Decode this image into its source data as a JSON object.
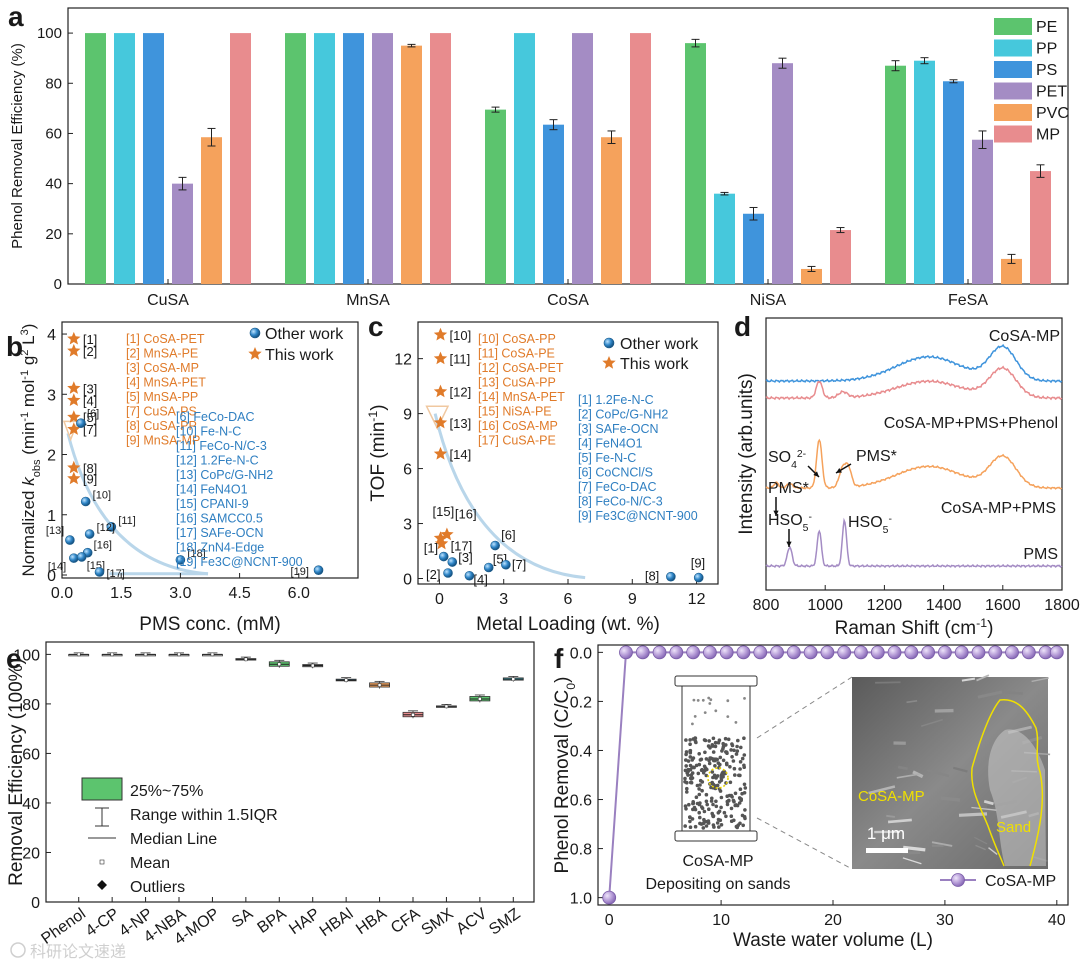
{
  "watermark": "科研论文速递",
  "chart_data": [
    {
      "panel": "a",
      "type": "bar",
      "ylabel": "Phenol Removal Efficiency (%)",
      "ylim": [
        0,
        110
      ],
      "yticks": [
        0,
        20,
        40,
        60,
        80,
        100
      ],
      "categories": [
        "CuSA",
        "MnSA",
        "CoSA",
        "NiSA",
        "FeSA"
      ],
      "legend_position": "top-right",
      "series": [
        {
          "name": "PE",
          "color": "#5cc46e",
          "values": [
            100,
            100,
            69.5,
            96,
            87
          ],
          "errors": [
            0,
            0,
            1,
            1.5,
            2
          ]
        },
        {
          "name": "PP",
          "color": "#46c8dc",
          "values": [
            100,
            100,
            100,
            36,
            89
          ],
          "errors": [
            0,
            0,
            0,
            0.5,
            1.2
          ]
        },
        {
          "name": "PS",
          "color": "#3f94dc",
          "values": [
            100,
            100,
            63.5,
            28,
            80.8
          ],
          "errors": [
            0,
            0,
            2,
            2.5,
            0.6
          ]
        },
        {
          "name": "PET",
          "color": "#a48cc4",
          "values": [
            40,
            100,
            100,
            88,
            57.5
          ],
          "errors": [
            2.5,
            0,
            0,
            2,
            3.5
          ]
        },
        {
          "name": "PVC",
          "color": "#f5a25c",
          "values": [
            58.5,
            95,
            58.5,
            6,
            10
          ],
          "errors": [
            3.5,
            0.5,
            2.5,
            1,
            1.8
          ]
        },
        {
          "name": "MP",
          "color": "#e88c8e",
          "values": [
            100,
            100,
            100,
            21.5,
            45
          ],
          "errors": [
            0,
            0,
            0,
            1,
            2.5
          ]
        }
      ]
    },
    {
      "panel": "b",
      "type": "scatter",
      "xlabel": "PMS conc. (mM)",
      "ylabel_parts": [
        "Normalized ",
        "k",
        "obs",
        " (min",
        "-1",
        " mol",
        "-1",
        " g",
        "2",
        " L",
        "3",
        ")"
      ],
      "xlim": [
        0,
        7.5
      ],
      "ylim": [
        -0.05,
        4.2
      ],
      "xticks": [
        "0.0",
        "1.5",
        "3.0",
        "4.5",
        "6.0"
      ],
      "yticks": [
        0,
        1,
        2,
        3,
        4
      ],
      "this_work": [
        {
          "label": "[1]",
          "x": 0.3,
          "y": 3.92
        },
        {
          "label": "[2]",
          "x": 0.3,
          "y": 3.72
        },
        {
          "label": "[3]",
          "x": 0.3,
          "y": 3.1
        },
        {
          "label": "[4]",
          "x": 0.3,
          "y": 2.9
        },
        {
          "label": "[5]",
          "x": 0.3,
          "y": 2.62
        },
        {
          "label": "[7]",
          "x": 0.3,
          "y": 2.42
        },
        {
          "label": "[8]",
          "x": 0.3,
          "y": 1.78
        },
        {
          "label": "[9]",
          "x": 0.3,
          "y": 1.6
        }
      ],
      "other_work": [
        {
          "label": "[6]",
          "x": 0.48,
          "y": 2.52
        },
        {
          "label": "[10]",
          "x": 0.6,
          "y": 1.22
        },
        {
          "label": "[11]",
          "x": 1.25,
          "y": 0.8
        },
        {
          "label": "[12]",
          "x": 0.7,
          "y": 0.68
        },
        {
          "label": "[13]",
          "x": 0.2,
          "y": 0.58
        },
        {
          "label": "[16]",
          "x": 0.65,
          "y": 0.37
        },
        {
          "label": "[14]",
          "x": 0.3,
          "y": 0.28
        },
        {
          "label": "[15]",
          "x": 0.5,
          "y": 0.3
        },
        {
          "label": "[17]",
          "x": 0.95,
          "y": 0.05
        },
        {
          "label": "[18]",
          "x": 3.0,
          "y": 0.25
        },
        {
          "label": "[19]",
          "x": 6.5,
          "y": 0.08
        }
      ],
      "legend": [
        "Other work",
        "This work"
      ],
      "refs_this_work": [
        "[1] CoSA-PET",
        "[2] MnSA-PE",
        "[3] CoSA-MP",
        "[4] MnSA-PET",
        "[5] MnSA-PP",
        "[7] CuSA-PS",
        "[8] CuSA-PP",
        "[9] MnSA-MP"
      ],
      "refs_other_work": [
        "[6] FeCo-DAC",
        "[10] Fe-N-C",
        "[11] FeCo-N/C-3",
        "[12] 1.2Fe-N-C",
        "[13] CoPc/G-NH2",
        "[14] FeN4O1",
        "[15] CPANI-9",
        "[16] SAMCC0.5",
        "[17] SAFe-OCN",
        "[18] ZnN4-Edge",
        "[19] Fe3C@NCNT-900"
      ]
    },
    {
      "panel": "c",
      "type": "scatter",
      "xlabel": "Metal Loading (wt. %)",
      "ylabel_parts": [
        "TOF (min",
        "-1",
        ")"
      ],
      "xlim": [
        -1,
        13
      ],
      "ylim": [
        -0.3,
        14
      ],
      "xticks": [
        0,
        3,
        6,
        9,
        12
      ],
      "yticks": [
        0,
        3,
        6,
        9,
        12
      ],
      "this_work": [
        {
          "label": "[10]",
          "x": 0.05,
          "y": 13.3
        },
        {
          "label": "[11]",
          "x": 0.05,
          "y": 12.0
        },
        {
          "label": "[12]",
          "x": 0.05,
          "y": 10.2
        },
        {
          "label": "[13]",
          "x": 0.05,
          "y": 8.5
        },
        {
          "label": "[14]",
          "x": 0.05,
          "y": 6.8
        },
        {
          "label": "[15]",
          "x": 0.05,
          "y": 2.2
        },
        {
          "label": "[16]",
          "x": 0.35,
          "y": 2.4
        },
        {
          "label": "[17]",
          "x": 0.1,
          "y": 1.9
        }
      ],
      "other_work": [
        {
          "label": "[1]",
          "x": 0.2,
          "y": 1.2
        },
        {
          "label": "[2]",
          "x": 0.4,
          "y": 0.3
        },
        {
          "label": "[3]",
          "x": 0.6,
          "y": 0.9
        },
        {
          "label": "[4]",
          "x": 1.4,
          "y": 0.15
        },
        {
          "label": "[5]",
          "x": 2.3,
          "y": 0.6
        },
        {
          "label": "[6]",
          "x": 2.6,
          "y": 1.8
        },
        {
          "label": "[7]",
          "x": 3.1,
          "y": 0.75
        },
        {
          "label": "[8]",
          "x": 10.8,
          "y": 0.1
        },
        {
          "label": "[9]",
          "x": 12.1,
          "y": 0.05
        }
      ],
      "legend": [
        "Other work",
        "This work"
      ],
      "refs_this_work": [
        "[10] CoSA-PP",
        "[11] CoSA-PE",
        "[12] CoSA-PET",
        "[13] CuSA-PP",
        "[14] MnSA-PET",
        "[15] NiSA-PE",
        "[16] CoSA-MP",
        "[17] CuSA-PE"
      ],
      "refs_other_work": [
        "[1] 1.2Fe-N-C",
        "[2] CoPc/G-NH2",
        "[3] SAFe-OCN",
        "[4] FeN4O1",
        "[5] Fe-N-C",
        "[6] CoCNCl/S",
        "[7] FeCo-DAC",
        "[8] FeCo-N/C-3",
        "[9] Fe3C@NCNT-900"
      ]
    },
    {
      "panel": "d",
      "type": "line",
      "xlabel": "Raman Shift (cm⁻¹)",
      "ylabel": "Intensity (arb.units)",
      "xlim": [
        800,
        1800
      ],
      "xticks": [
        800,
        1000,
        1200,
        1400,
        1600,
        1800
      ],
      "series": [
        {
          "name": "CoSA-MP",
          "color": "#3f94dc",
          "offset": 3.0,
          "peaks": [
            [
              1350,
              0.55,
              110
            ],
            [
              1600,
              0.75,
              45
            ]
          ]
        },
        {
          "name": "CoSA-MP+PMS+Phenol",
          "color": "#e88c8e",
          "offset": 2.2,
          "peaks": [
            [
              980,
              0.35,
              10
            ],
            [
              1060,
              0.12,
              15
            ],
            [
              1350,
              0.35,
              110
            ],
            [
              1600,
              0.6,
              45
            ]
          ]
        },
        {
          "name": "CoSA-MP+PMS",
          "color": "#f5a25c",
          "offset": 1.0,
          "peaks": [
            [
              835,
              0.15,
              8
            ],
            [
              880,
              0.12,
              10
            ],
            [
              980,
              1.35,
              9
            ],
            [
              1060,
              0.55,
              12
            ],
            [
              1080,
              0.45,
              10
            ],
            [
              1350,
              0.6,
              110
            ],
            [
              1600,
              0.85,
              45
            ]
          ]
        },
        {
          "name": "PMS",
          "color": "#a48cc4",
          "offset": 0.0,
          "peaks": [
            [
              880,
              0.45,
              8
            ],
            [
              980,
              0.85,
              7
            ],
            [
              1065,
              1.1,
              7
            ]
          ]
        }
      ],
      "annotations": [
        {
          "text": "SO",
          "sub": "4",
          "sup": "2-"
        },
        {
          "text": "PMS*"
        },
        {
          "text": "PMS*"
        },
        {
          "text": "HSO",
          "sub": "5",
          "sup": "-"
        },
        {
          "text": "HSO",
          "sub": "5",
          "sup": "-"
        }
      ]
    },
    {
      "panel": "e",
      "type": "box",
      "ylabel": "Removal Efficiency (100%)",
      "ylim": [
        0,
        105
      ],
      "yticks": [
        0,
        20,
        40,
        60,
        80,
        100
      ],
      "categories": [
        "Phenol",
        "4-CP",
        "4-NP",
        "4-NBA",
        "4-MOP",
        "SA",
        "BPA",
        "HAP",
        "HBAl",
        "HBA",
        "CFA",
        "SMX",
        "ACV",
        "SMZ"
      ],
      "q1": [
        99.9,
        99.9,
        99.9,
        99.9,
        99.9,
        97.8,
        95.2,
        95.0,
        89.3,
        86.8,
        74.8,
        78.8,
        81.2,
        89.6
      ],
      "median": [
        100,
        100,
        100,
        100,
        100,
        98.0,
        96.0,
        95.5,
        89.6,
        87.6,
        75.6,
        79.0,
        82.0,
        90.0
      ],
      "q3": [
        100,
        100,
        100,
        100,
        100,
        98.3,
        97.0,
        95.9,
        90.0,
        88.5,
        76.6,
        79.2,
        83.0,
        90.5
      ],
      "colors": [
        "#e8e8e8",
        "#e8e8e8",
        "#e8e8e8",
        "#e8e8e8",
        "#e8e8e8",
        "#c0c0c0",
        "#5cc46e",
        "#8a8a8a",
        "#46a8dc",
        "#f5a25c",
        "#e88c8e",
        "#c0c0c0",
        "#5cc46e",
        "#46c8dc"
      ],
      "legend": [
        "25%~75%",
        "Range within 1.5IQR",
        "Median Line",
        "Mean",
        "Outliers"
      ]
    },
    {
      "panel": "f",
      "type": "line",
      "xlabel": "Waste water volume (L)",
      "ylabel_parts": [
        "Phenol Removal (C/C",
        "0",
        ")"
      ],
      "xlim": [
        -1,
        41
      ],
      "ylim": [
        1.03,
        -0.03
      ],
      "xticks": [
        0,
        10,
        20,
        30,
        40
      ],
      "yticks": [
        "0.0",
        "0.2",
        "0.4",
        "0.6",
        "0.8",
        "1.0"
      ],
      "series": [
        {
          "name": "CoSA-MP",
          "color": "#9a80c0",
          "x": [
            0,
            1.5,
            3,
            4.5,
            6,
            7.5,
            9,
            10.5,
            12,
            13.5,
            15,
            16.5,
            18,
            19.5,
            21,
            22.5,
            24,
            25.5,
            27,
            28.5,
            30,
            31.5,
            33,
            34.5,
            36,
            37.5,
            39,
            40
          ],
          "y": [
            1.0,
            0,
            0,
            0,
            0,
            0,
            0,
            0,
            0,
            0,
            0,
            0,
            0,
            0,
            0,
            0,
            0,
            0,
            0,
            0,
            0,
            0,
            0,
            0,
            0,
            0,
            0,
            0
          ]
        }
      ],
      "inset_caption_1": "CoSA-MP",
      "inset_caption_2": "Depositing on sands",
      "sem_label_catalyst": "CoSA-MP",
      "sem_label_sand": "Sand",
      "sem_scale": "1 μm"
    }
  ],
  "panel_letters": [
    "a",
    "b",
    "c",
    "d",
    "e",
    "f"
  ]
}
